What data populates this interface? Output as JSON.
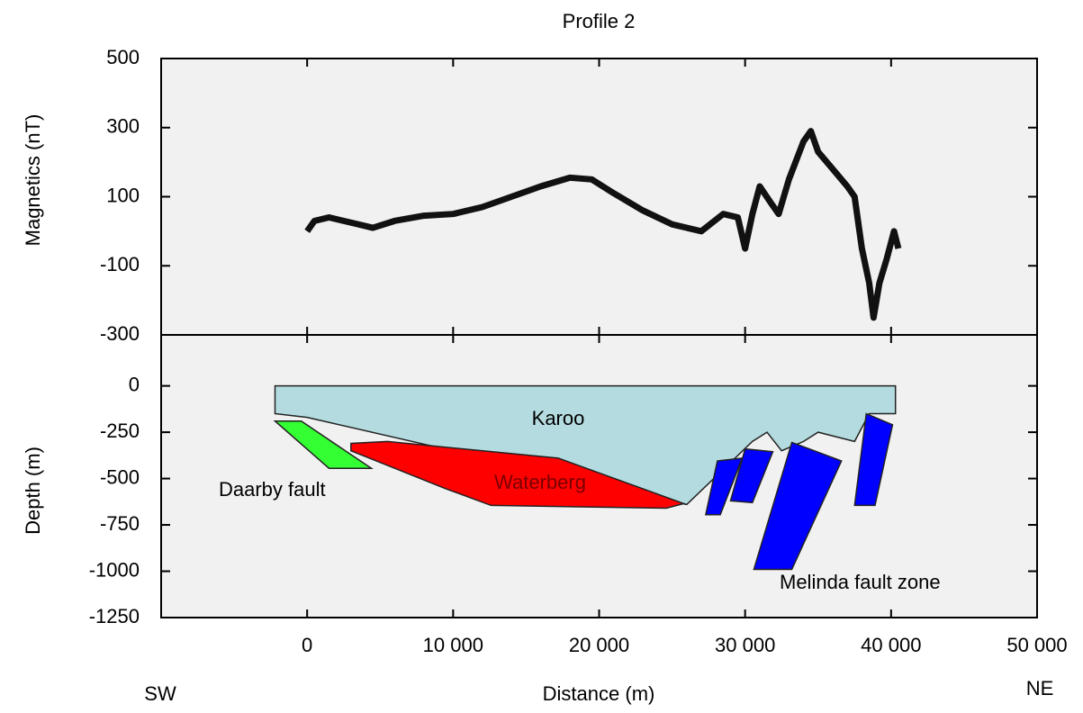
{
  "chart_data": [
    {
      "type": "line",
      "title": "Profile 2",
      "ylabel": "Magnetics (nT)",
      "xlim": [
        -10000,
        50000
      ],
      "ylim": [
        -300,
        500
      ],
      "yticks": [
        -300,
        -100,
        100,
        300,
        500
      ],
      "series": [
        {
          "color": "#111111",
          "x": [
            0,
            500,
            1500,
            3000,
            4500,
            6000,
            8000,
            10000,
            12000,
            14000,
            16000,
            18000,
            19500,
            21000,
            23000,
            25000,
            27000,
            28500,
            29500,
            30000,
            30500,
            31000,
            31800,
            32300,
            33000,
            34000,
            34500,
            35000,
            36000,
            37000,
            37500,
            38000,
            38500,
            38800,
            39200,
            39700,
            40200,
            40500
          ],
          "values": [
            0,
            30,
            40,
            25,
            10,
            30,
            45,
            50,
            70,
            100,
            130,
            155,
            150,
            110,
            60,
            20,
            0,
            50,
            40,
            -50,
            50,
            130,
            80,
            50,
            150,
            260,
            290,
            230,
            180,
            130,
            100,
            -50,
            -150,
            -250,
            -150,
            -80,
            0,
            -50
          ]
        }
      ]
    },
    {
      "type": "polygon",
      "xlabel": "Distance (m)",
      "ylabel": "Depth (m)",
      "xlim": [
        -10000,
        50000
      ],
      "ylim": [
        -1250,
        275
      ],
      "xticks": [
        0,
        {
          "value": 10000,
          "label": "10 000"
        },
        {
          "value": 20000,
          "label": "20 000"
        },
        {
          "value": 30000,
          "label": "30 000"
        },
        {
          "value": 40000,
          "label": "40 000"
        },
        {
          "value": 50000,
          "label": "50 000"
        }
      ],
      "yticks": [
        -1250,
        -1000,
        -750,
        -500,
        -250,
        0
      ],
      "bodies": [
        {
          "name": "Karoo",
          "color": "#b4dce0",
          "x": [
            -2200,
            40300,
            40300,
            38500,
            37500,
            35000,
            34000,
            32500,
            31500,
            30500,
            26000,
            0,
            -2200
          ],
          "y": [
            0,
            0,
            -150,
            -150,
            -300,
            -250,
            -300,
            -350,
            -250,
            -300,
            -640,
            -170,
            -150
          ]
        },
        {
          "name": "Waterberg",
          "color": "#ff0000",
          "x": [
            3000,
            5500,
            17200,
            25800,
            24600,
            12600,
            9500,
            3000
          ],
          "y": [
            -310,
            -300,
            -390,
            -635,
            -660,
            -645,
            -555,
            -350
          ]
        },
        {
          "color": "#33ff33",
          "x": [
            -2200,
            -400,
            4400,
            1500
          ],
          "y": [
            -190,
            -190,
            -445,
            -445
          ]
        },
        {
          "color": "#0000ff",
          "x": [
            28100,
            29800,
            28300,
            27300
          ],
          "y": [
            -405,
            -390,
            -695,
            -695
          ]
        },
        {
          "color": "#0000ff",
          "x": [
            30000,
            31900,
            30500,
            29000
          ],
          "y": [
            -340,
            -355,
            -630,
            -620
          ]
        },
        {
          "color": "#0000ff",
          "x": [
            33200,
            36600,
            33200,
            30600
          ],
          "y": [
            -305,
            -405,
            -990,
            -990
          ]
        },
        {
          "color": "#0000ff",
          "x": [
            38300,
            40100,
            38900,
            37500
          ],
          "y": [
            -150,
            -210,
            -645,
            -645
          ]
        }
      ],
      "annotations": [
        "Daarby fault",
        "Melinda fault zone",
        "SW",
        "NE"
      ]
    }
  ]
}
